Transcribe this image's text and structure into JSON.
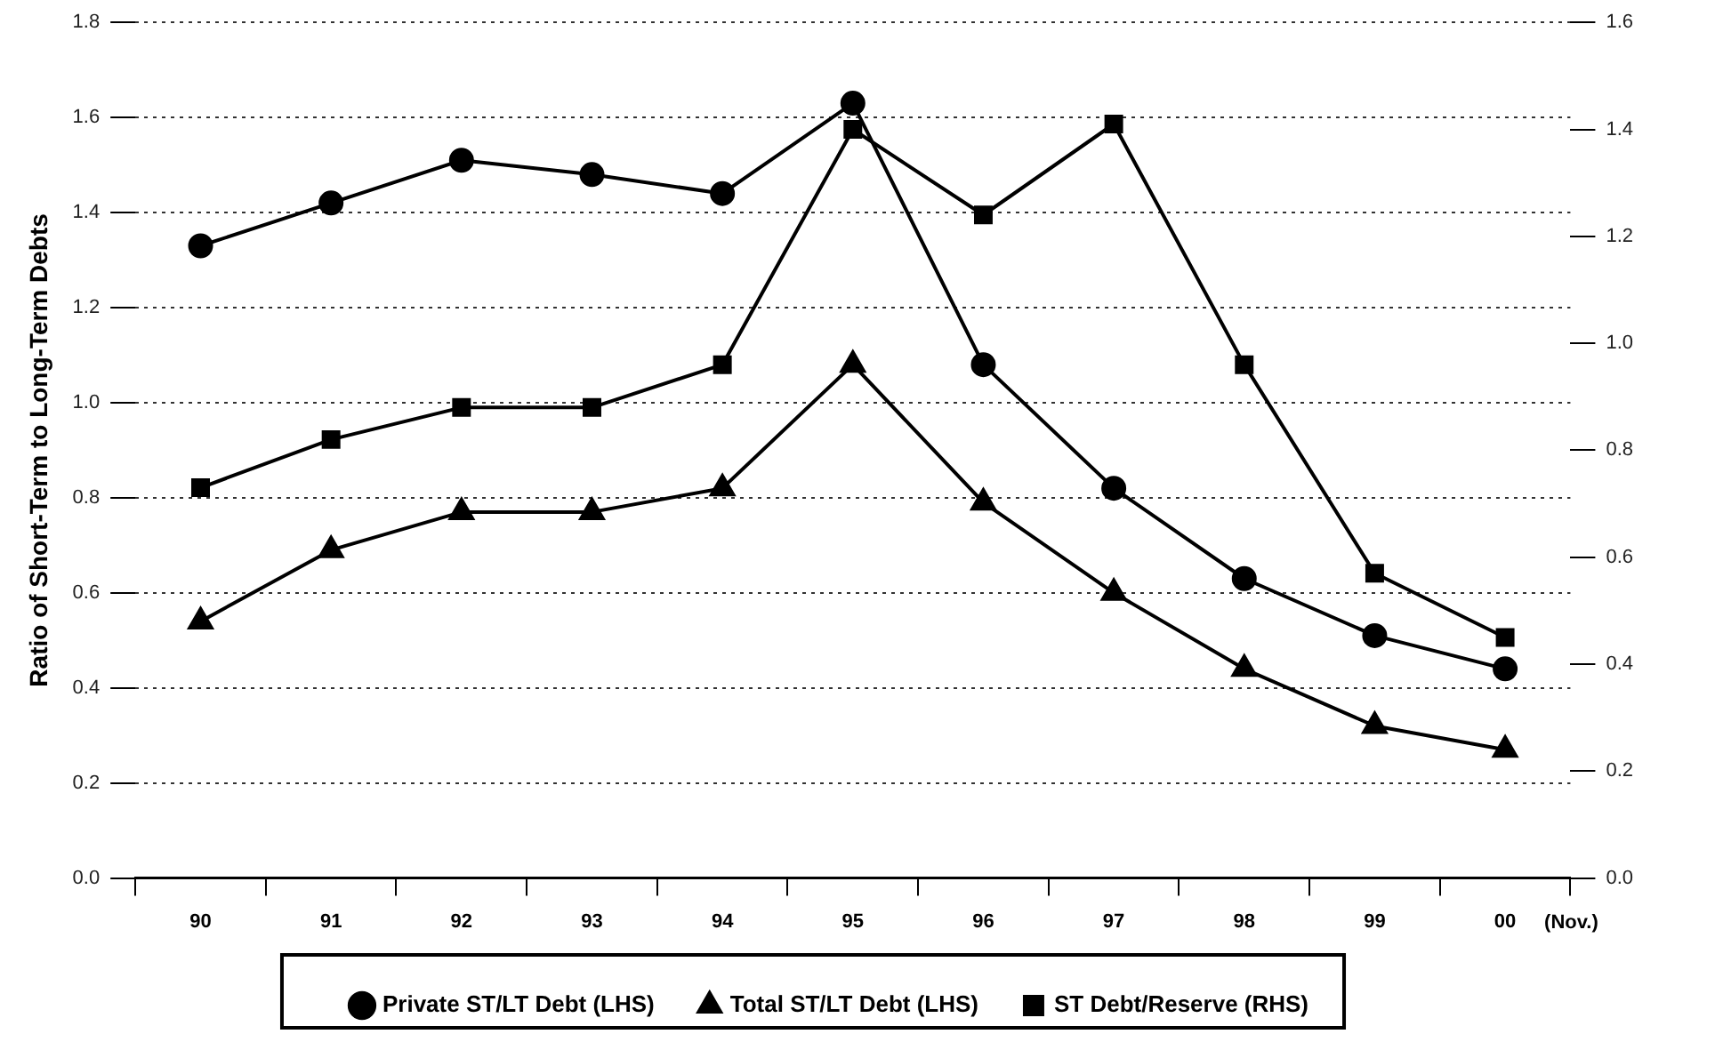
{
  "chart_data": {
    "type": "line",
    "ylabel": "Ratio of Short-Term to Long-Term Debts",
    "categories": [
      "90",
      "91",
      "92",
      "93",
      "94",
      "95",
      "96",
      "97",
      "98",
      "99",
      "00"
    ],
    "series": [
      {
        "name": "Private ST/LT Debt (LHS)",
        "color": "#000000",
        "marker": "circle",
        "values": [
          1.33,
          1.42,
          1.51,
          1.48,
          1.44,
          1.63,
          1.08,
          0.82,
          0.63,
          0.51,
          0.44
        ]
      },
      {
        "name": "Total ST/LT Debt (LHS)",
        "color": "#000000",
        "marker": "triangle",
        "values": [
          0.54,
          0.69,
          0.77,
          0.77,
          0.82,
          1.08,
          0.79,
          0.6,
          0.44,
          0.32,
          0.27
        ]
      },
      {
        "name": "ST Debt/Reserve (RHS)",
        "color": "#000000",
        "marker": "square",
        "axis": "y2",
        "values": [
          0.73,
          0.82,
          0.88,
          0.88,
          0.96,
          1.4,
          1.24,
          1.41,
          0.96,
          0.57,
          0.45
        ]
      }
    ],
    "ylim": [
      0,
      1.8
    ],
    "yticks": [
      {
        "value": 0,
        "label": "0.0"
      },
      0.2,
      0.4,
      0.6,
      0.8,
      {
        "value": 1,
        "label": "1.0"
      },
      1.2,
      1.4,
      1.6,
      1.8
    ],
    "y2lim": [
      0,
      1.6
    ],
    "y2ticks": [
      {
        "value": 0,
        "label": "0.0"
      },
      0.2,
      0.4,
      0.6,
      0.8,
      {
        "value": 1,
        "label": "1.0"
      },
      1.2,
      1.4,
      1.6
    ],
    "annotations": [
      "(Nov.)"
    ],
    "grid": "y",
    "legend": "bottom",
    "line_style": "solid"
  }
}
